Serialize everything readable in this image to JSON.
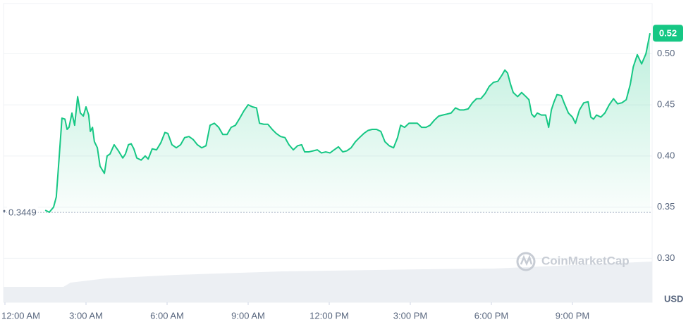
{
  "chart_data": {
    "type": "line",
    "color": "#16c784",
    "x": [
      1.49,
      1.64,
      1.8,
      1.9,
      2.01,
      2.11,
      2.22,
      2.3,
      2.37,
      2.48,
      2.58,
      2.69,
      2.79,
      2.9,
      3.0,
      3.1,
      3.16,
      3.24,
      3.31,
      3.42,
      3.52,
      3.68,
      3.78,
      3.89,
      4.04,
      4.2,
      4.36,
      4.46,
      4.57,
      4.67,
      4.77,
      4.88,
      5.04,
      5.19,
      5.3,
      5.45,
      5.61,
      5.77,
      5.92,
      6.03,
      6.18,
      6.34,
      6.5,
      6.65,
      6.81,
      6.97,
      7.12,
      7.28,
      7.44,
      7.59,
      7.75,
      7.91,
      8.06,
      8.22,
      8.37,
      8.53,
      8.69,
      8.84,
      9.0,
      9.16,
      9.31,
      9.42,
      9.58,
      9.73,
      9.89,
      10.04,
      10.2,
      10.36,
      10.51,
      10.67,
      10.83,
      10.98,
      11.09,
      11.24,
      11.4,
      11.56,
      11.71,
      11.87,
      12.03,
      12.18,
      12.34,
      12.5,
      12.65,
      12.81,
      12.97,
      13.12,
      13.28,
      13.44,
      13.59,
      13.75,
      13.91,
      14.06,
      14.22,
      14.38,
      14.53,
      14.64,
      14.79,
      14.95,
      15.11,
      15.26,
      15.42,
      15.58,
      15.73,
      15.89,
      16.05,
      16.2,
      16.36,
      16.51,
      16.67,
      16.83,
      16.98,
      17.14,
      17.3,
      17.45,
      17.61,
      17.77,
      17.92,
      18.08,
      18.24,
      18.39,
      18.5,
      18.6,
      18.71,
      18.81,
      18.97,
      19.12,
      19.28,
      19.39,
      19.49,
      19.59,
      19.7,
      19.85,
      20.01,
      20.12,
      20.22,
      20.32,
      20.43,
      20.59,
      20.69,
      20.85,
      21.0,
      21.11,
      21.26,
      21.42,
      21.58,
      21.68,
      21.78,
      21.89,
      22.05,
      22.2,
      22.36,
      22.52,
      22.67,
      22.83,
      22.99,
      23.14,
      23.25,
      23.4,
      23.56,
      23.72,
      23.87
    ],
    "values": [
      0.347,
      0.345,
      0.35,
      0.36,
      0.4,
      0.437,
      0.436,
      0.426,
      0.428,
      0.442,
      0.43,
      0.458,
      0.442,
      0.439,
      0.448,
      0.44,
      0.424,
      0.428,
      0.414,
      0.408,
      0.39,
      0.383,
      0.4,
      0.402,
      0.411,
      0.405,
      0.398,
      0.402,
      0.411,
      0.412,
      0.407,
      0.398,
      0.396,
      0.4,
      0.397,
      0.407,
      0.406,
      0.413,
      0.423,
      0.422,
      0.411,
      0.408,
      0.411,
      0.418,
      0.419,
      0.416,
      0.411,
      0.408,
      0.41,
      0.43,
      0.432,
      0.428,
      0.421,
      0.421,
      0.428,
      0.43,
      0.437,
      0.444,
      0.45,
      0.448,
      0.447,
      0.432,
      0.431,
      0.431,
      0.426,
      0.422,
      0.419,
      0.418,
      0.411,
      0.406,
      0.41,
      0.411,
      0.404,
      0.404,
      0.405,
      0.406,
      0.403,
      0.404,
      0.403,
      0.406,
      0.409,
      0.404,
      0.405,
      0.408,
      0.414,
      0.418,
      0.422,
      0.425,
      0.426,
      0.426,
      0.424,
      0.414,
      0.41,
      0.408,
      0.418,
      0.43,
      0.428,
      0.432,
      0.432,
      0.432,
      0.428,
      0.428,
      0.43,
      0.435,
      0.439,
      0.44,
      0.441,
      0.442,
      0.447,
      0.445,
      0.445,
      0.446,
      0.452,
      0.456,
      0.456,
      0.461,
      0.468,
      0.472,
      0.473,
      0.479,
      0.484,
      0.481,
      0.47,
      0.462,
      0.458,
      0.462,
      0.458,
      0.455,
      0.441,
      0.438,
      0.442,
      0.44,
      0.44,
      0.428,
      0.445,
      0.453,
      0.46,
      0.459,
      0.452,
      0.442,
      0.438,
      0.432,
      0.445,
      0.452,
      0.453,
      0.438,
      0.436,
      0.44,
      0.438,
      0.442,
      0.45,
      0.456,
      0.451,
      0.452,
      0.455,
      0.47,
      0.487,
      0.499,
      0.49,
      0.5,
      0.52
    ],
    "xlim": [
      0,
      24
    ],
    "xticks": [
      {
        "value": 0,
        "label": "12:00 AM"
      },
      {
        "value": 3,
        "label": "3:00 AM"
      },
      {
        "value": 6,
        "label": "6:00 AM"
      },
      {
        "value": 9,
        "label": "9:00 AM"
      },
      {
        "value": 12,
        "label": "12:00 PM"
      },
      {
        "value": 15,
        "label": "3:00 PM"
      },
      {
        "value": 18,
        "label": "6:00 PM"
      },
      {
        "value": 21,
        "label": "9:00 PM"
      }
    ],
    "ylim": [
      0.257,
      0.549
    ],
    "yticks": [
      {
        "value": 0.3,
        "label": "0.30"
      },
      0.35,
      {
        "value": 0.4,
        "label": "0.40"
      },
      0.45,
      {
        "value": 0.5,
        "label": "0.50"
      }
    ],
    "reference": 0.3449,
    "current_price": 0.52,
    "y_axis_label": "USD",
    "watermark": "CoinMarketCap",
    "grid": true
  }
}
